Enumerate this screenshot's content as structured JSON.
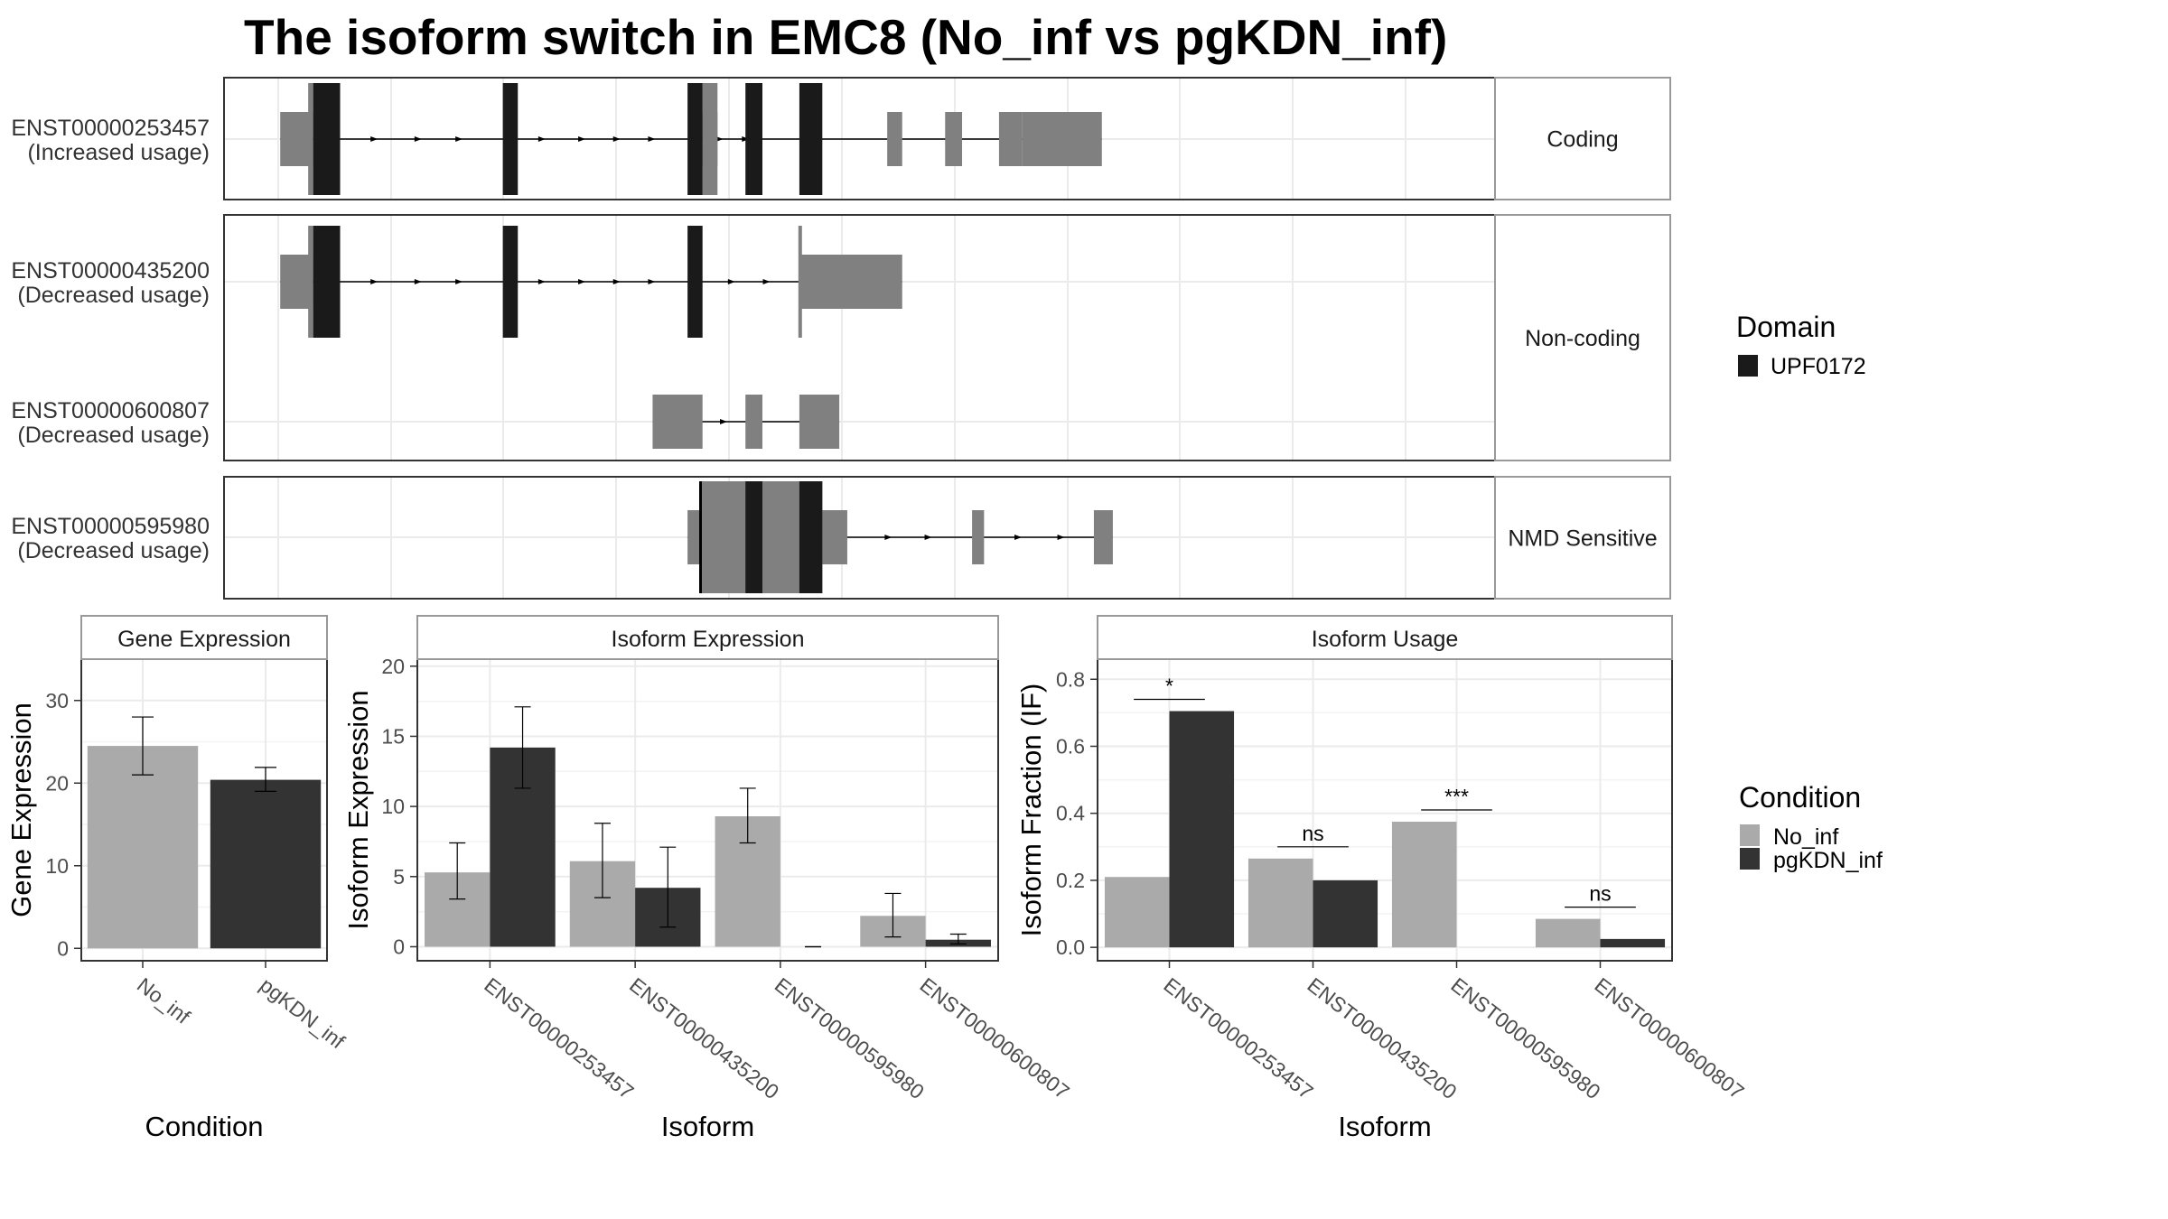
{
  "title": "The isoform switch in EMC8 (No_inf vs pgKDN_inf)",
  "colors": {
    "no_inf": "#aaaaaa",
    "pgkdn_inf": "#333333",
    "domain": "#1a1a1a",
    "exon": "#808080",
    "grid": "#ebebeb",
    "panel_border": "#333333",
    "strip_border": "#999999"
  },
  "structure": {
    "x_range": [
      0,
      1160
    ],
    "facets": [
      {
        "label": "Coding",
        "transcripts": [
          {
            "id": "ENST00000253457",
            "usage": "(Increased usage)",
            "exons": [
              [
                2,
                35
              ],
              [
                425,
                440
              ],
              [
                610,
                625
              ],
              [
                668,
                685
              ],
              [
                722,
                745
              ],
              [
                745,
                825
              ]
            ],
            "domain": [
              [
                35,
                62
              ],
              [
                225,
                240
              ],
              [
                410,
                425
              ],
              [
                468,
                485
              ],
              [
                522,
                545
              ]
            ],
            "cds": [
              [
                30,
                545
              ]
            ],
            "arrows": [
              97,
              141,
              182,
              265,
              305,
              340,
              375,
              443,
              469
            ]
          }
        ]
      },
      {
        "label": "Non-coding",
        "transcripts": [
          {
            "id": "ENST00000435200",
            "usage": "(Decreased usage)",
            "exons": [
              [
                2,
                35
              ],
              [
                522,
                625
              ]
            ],
            "domain": [
              [
                35,
                62
              ],
              [
                225,
                240
              ],
              [
                410,
                425
              ]
            ],
            "cds": [
              [
                30,
                425
              ],
              [
                521,
                524
              ]
            ],
            "arrows": [
              97,
              141,
              182,
              265,
              305,
              340,
              375,
              455,
              490
            ]
          },
          {
            "id": "ENST00000600807",
            "usage": "(Decreased usage)",
            "exons": [
              [
                375,
                425
              ],
              [
                468,
                485
              ],
              [
                522,
                562
              ]
            ],
            "domain": [],
            "cds": [],
            "arrows": [
              447
            ]
          }
        ]
      },
      {
        "label": "NMD Sensitive",
        "transcripts": [
          {
            "id": "ENST00000595980",
            "usage": "(Decreased usage)",
            "exons": [
              [
                410,
                423
              ],
              [
                423,
                545
              ],
              [
                545,
                570
              ],
              [
                695,
                707
              ],
              [
                817,
                836
              ]
            ],
            "domain": [
              [
                468,
                485
              ],
              [
                522,
                545
              ]
            ],
            "cds": [
              [
                423,
                545
              ]
            ],
            "arrows": [
              447,
              612,
              652,
              742,
              785
            ]
          }
        ]
      }
    ]
  },
  "legend_domain": {
    "title": "Domain",
    "entries": [
      "UPF0172"
    ]
  },
  "legend_condition": {
    "title": "Condition",
    "entries": [
      "No_inf",
      "pgKDN_inf"
    ]
  },
  "chart_data": [
    {
      "type": "bar",
      "title": "Gene Expression",
      "xlabel": "Condition",
      "ylabel": "Gene Expression",
      "categories": [
        "No_inf",
        "pgKDN_inf"
      ],
      "values": [
        24.5,
        20.4
      ],
      "error": [
        [
          21.0,
          28.0
        ],
        [
          19.0,
          21.9
        ]
      ],
      "ylim": [
        -1.5,
        35
      ],
      "yticks": [
        0,
        10,
        20,
        30
      ],
      "grid": true
    },
    {
      "type": "bar",
      "title": "Isoform Expression",
      "xlabel": "Isoform",
      "ylabel": "Isoform Expression",
      "categories": [
        "ENST00000253457",
        "ENST00000435200",
        "ENST00000595980",
        "ENST00000600807"
      ],
      "series": [
        {
          "name": "No_inf",
          "values": [
            5.3,
            6.1,
            9.3,
            2.2
          ],
          "error": [
            [
              3.4,
              7.4
            ],
            [
              3.5,
              8.8
            ],
            [
              7.4,
              11.3
            ],
            [
              0.7,
              3.8
            ]
          ]
        },
        {
          "name": "pgKDN_inf",
          "values": [
            14.2,
            4.2,
            0.0,
            0.5
          ],
          "error": [
            [
              11.3,
              17.1
            ],
            [
              1.4,
              7.1
            ],
            [
              0.0,
              0.0
            ],
            [
              0.2,
              0.9
            ]
          ]
        }
      ],
      "ylim": [
        -1,
        20.5
      ],
      "yticks": [
        0,
        5,
        10,
        15,
        20
      ],
      "grid": true
    },
    {
      "type": "bar",
      "title": "Isoform Usage",
      "xlabel": "Isoform",
      "ylabel": "Isoform Fraction (IF)",
      "categories": [
        "ENST00000253457",
        "ENST00000435200",
        "ENST00000595980",
        "ENST00000600807"
      ],
      "series": [
        {
          "name": "No_inf",
          "values": [
            0.21,
            0.265,
            0.375,
            0.085
          ]
        },
        {
          "name": "pgKDN_inf",
          "values": [
            0.705,
            0.2,
            0.0,
            0.025
          ]
        }
      ],
      "significance": [
        {
          "label": "*",
          "y": 0.74
        },
        {
          "label": "ns",
          "y": 0.3
        },
        {
          "label": "***",
          "y": 0.41
        },
        {
          "label": "ns",
          "y": 0.12
        }
      ],
      "ylim": [
        -0.04,
        0.86
      ],
      "yticks": [
        0.0,
        0.2,
        0.4,
        0.6,
        0.8
      ],
      "ytick_labels": [
        "0.0",
        "0.2",
        "0.4",
        "0.6",
        "0.8"
      ],
      "grid": true
    }
  ]
}
